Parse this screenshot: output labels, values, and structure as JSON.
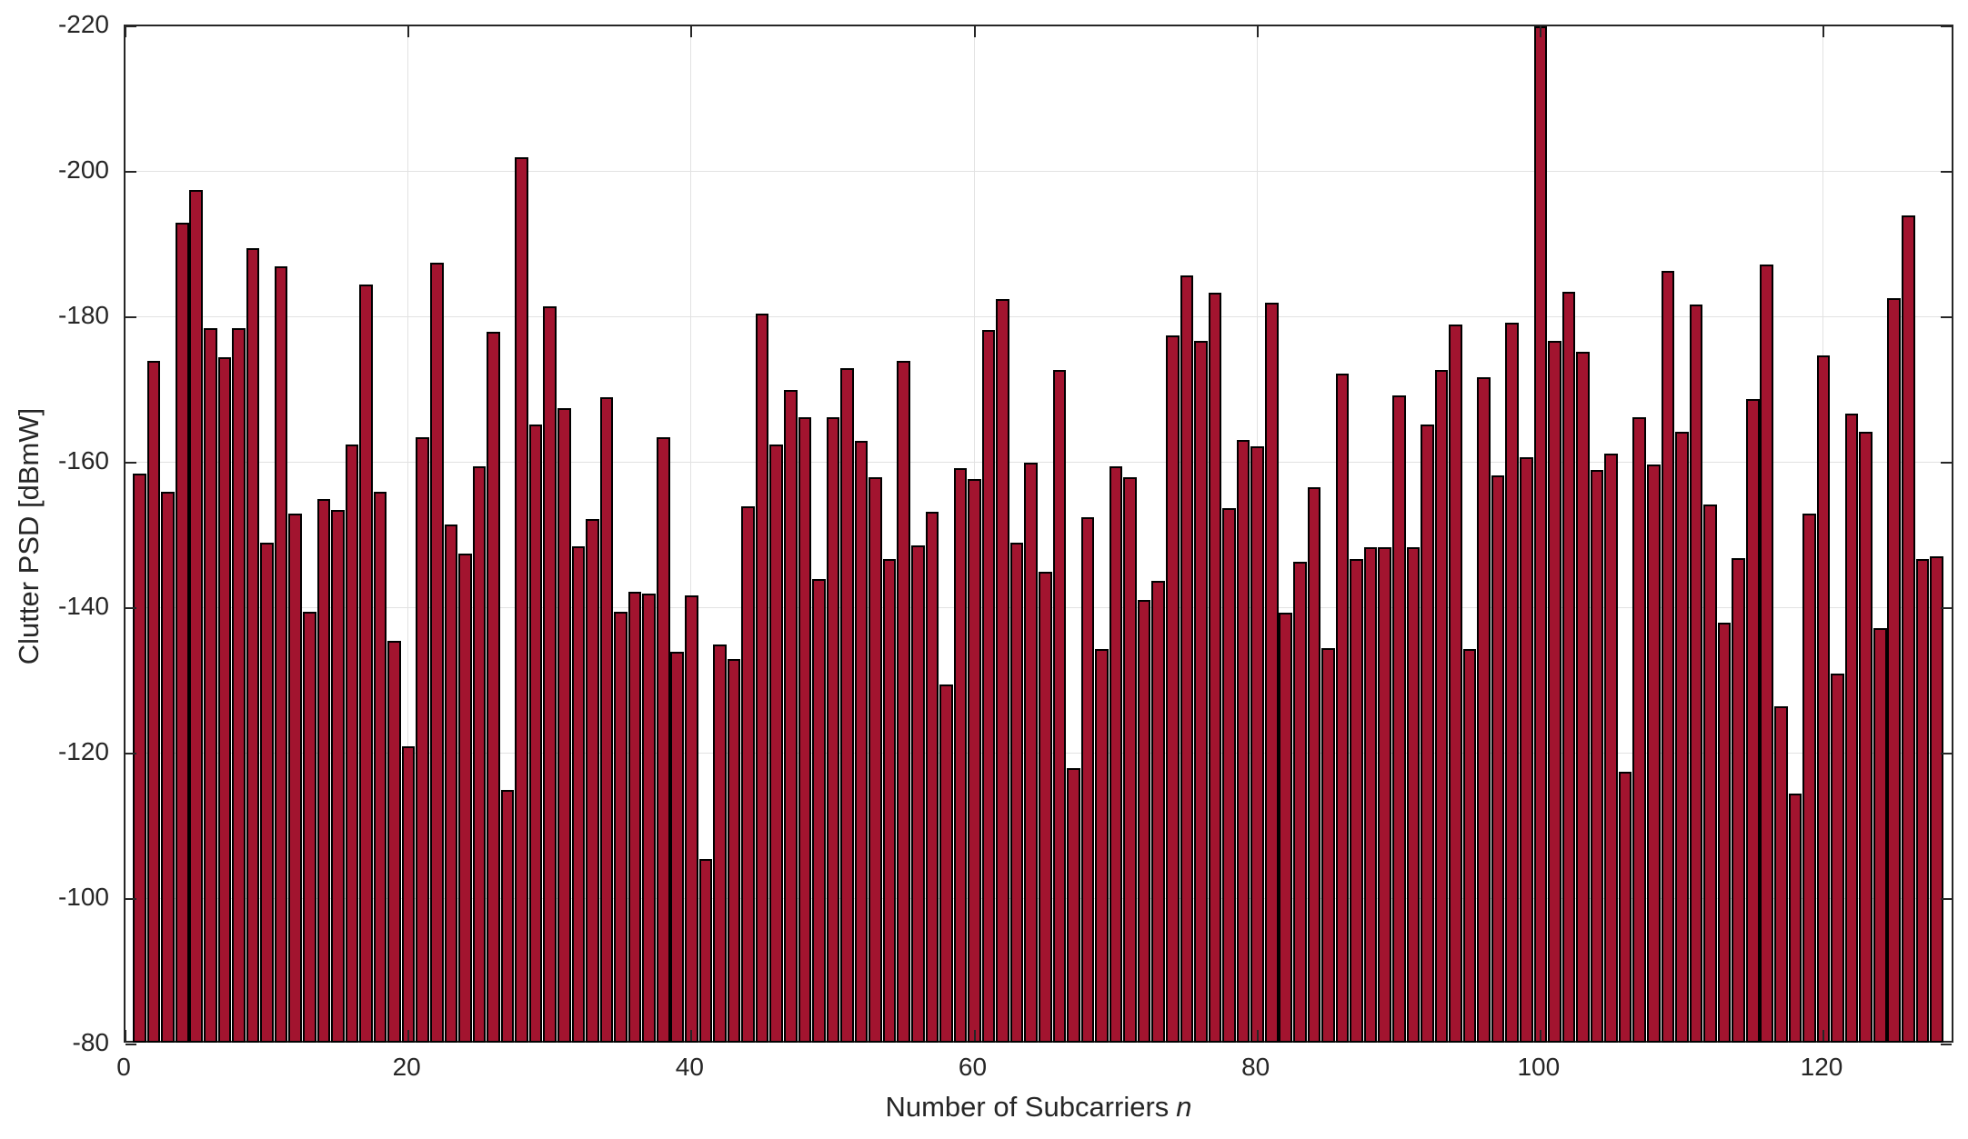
{
  "chart_data": {
    "type": "bar",
    "title": "",
    "xlabel": "Number of Subcarriers n",
    "xlabel_text": "Number of Subcarriers",
    "xlabel_var": "n",
    "ylabel": "Clutter PSD [dBmW]",
    "y_axis_reversed": true,
    "ylim": [
      -80,
      -220
    ],
    "xlim": [
      0,
      129.3
    ],
    "x_ticks": [
      0,
      20,
      40,
      60,
      80,
      100,
      120
    ],
    "y_ticks": [
      -220,
      -200,
      -180,
      -160,
      -140,
      -120,
      -100,
      -80
    ],
    "grid": true,
    "legend": null,
    "bar_color": "#A2142F",
    "bar_edge_color": "#000000",
    "axis_color": "#262626",
    "grid_color": "#E2E2E2",
    "baseline_value": -80,
    "values": [
      -158.5,
      -174.0,
      -156.0,
      -193.0,
      -197.5,
      -178.5,
      -174.5,
      -178.5,
      -189.5,
      -149.0,
      -187.0,
      -153.0,
      -139.5,
      -155.0,
      -153.5,
      -162.5,
      -184.5,
      -156.0,
      -135.5,
      -121.0,
      -163.5,
      -187.5,
      -151.5,
      -147.5,
      -159.5,
      -178.0,
      -115.0,
      -202.0,
      -165.3,
      -181.5,
      -167.5,
      -148.5,
      -152.3,
      -169.0,
      -139.5,
      -142.3,
      -142.0,
      -163.5,
      -134.0,
      -141.8,
      -105.5,
      -135.0,
      -133.0,
      -154.0,
      -180.5,
      -162.5,
      -170.0,
      -166.3,
      -144.0,
      -166.3,
      -173.0,
      -163.0,
      -158.0,
      -146.7,
      -174.0,
      -148.6,
      -153.3,
      -129.5,
      -159.3,
      -157.7,
      -178.3,
      -182.5,
      -149.0,
      -160.0,
      -145.0,
      -172.8,
      -118.0,
      -152.5,
      -134.4,
      -159.5,
      -158.0,
      -141.1,
      -143.7,
      -177.5,
      -185.8,
      -176.8,
      -183.4,
      -153.8,
      -163.1,
      -162.2,
      -182.0,
      -139.4,
      -146.4,
      -156.6,
      -134.5,
      -172.3,
      -146.7,
      -148.4,
      -148.4,
      -169.3,
      -148.4,
      -165.3,
      -172.7,
      -179.0,
      -134.4,
      -171.8,
      -158.3,
      -179.2,
      -160.8,
      -220.0,
      -176.8,
      -183.5,
      -175.3,
      -159.0,
      -161.3,
      -117.5,
      -166.3,
      -159.8,
      -186.4,
      -164.3,
      -181.7,
      -154.3,
      -138.0,
      -146.9,
      -168.8,
      -187.3,
      -126.5,
      -114.5,
      -153.0,
      -174.8,
      -131.0,
      -166.8,
      -164.3,
      -137.3,
      -182.6,
      -194.0,
      -146.7,
      -147.1
    ]
  }
}
